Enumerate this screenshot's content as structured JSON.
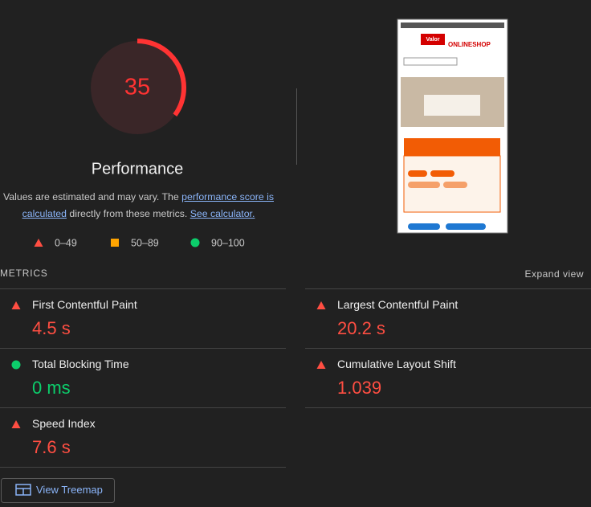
{
  "gauge": {
    "score": 35,
    "label": "Performance"
  },
  "description": {
    "before": "Values are estimated and may vary. The ",
    "link1": "performance score is calculated",
    "middle": " directly from these metrics. ",
    "link2": "See calculator."
  },
  "legend": [
    {
      "range": "0–49",
      "status": "fail"
    },
    {
      "range": "50–89",
      "status": "average"
    },
    {
      "range": "90–100",
      "status": "pass"
    }
  ],
  "thumbnail": {
    "brand": "Valor",
    "shop": "ONLINESHOP"
  },
  "metrics": {
    "title": "METRICS",
    "expand": "Expand view",
    "items": [
      {
        "name": "First Contentful Paint",
        "value": "4.5 s",
        "status": "fail"
      },
      {
        "name": "Largest Contentful Paint",
        "value": "20.2 s",
        "status": "fail"
      },
      {
        "name": "Total Blocking Time",
        "value": "0 ms",
        "status": "pass"
      },
      {
        "name": "Cumulative Layout Shift",
        "value": "1.039",
        "status": "fail"
      },
      {
        "name": "Speed Index",
        "value": "7.6 s",
        "status": "fail"
      }
    ]
  },
  "treemap": "View Treemap"
}
